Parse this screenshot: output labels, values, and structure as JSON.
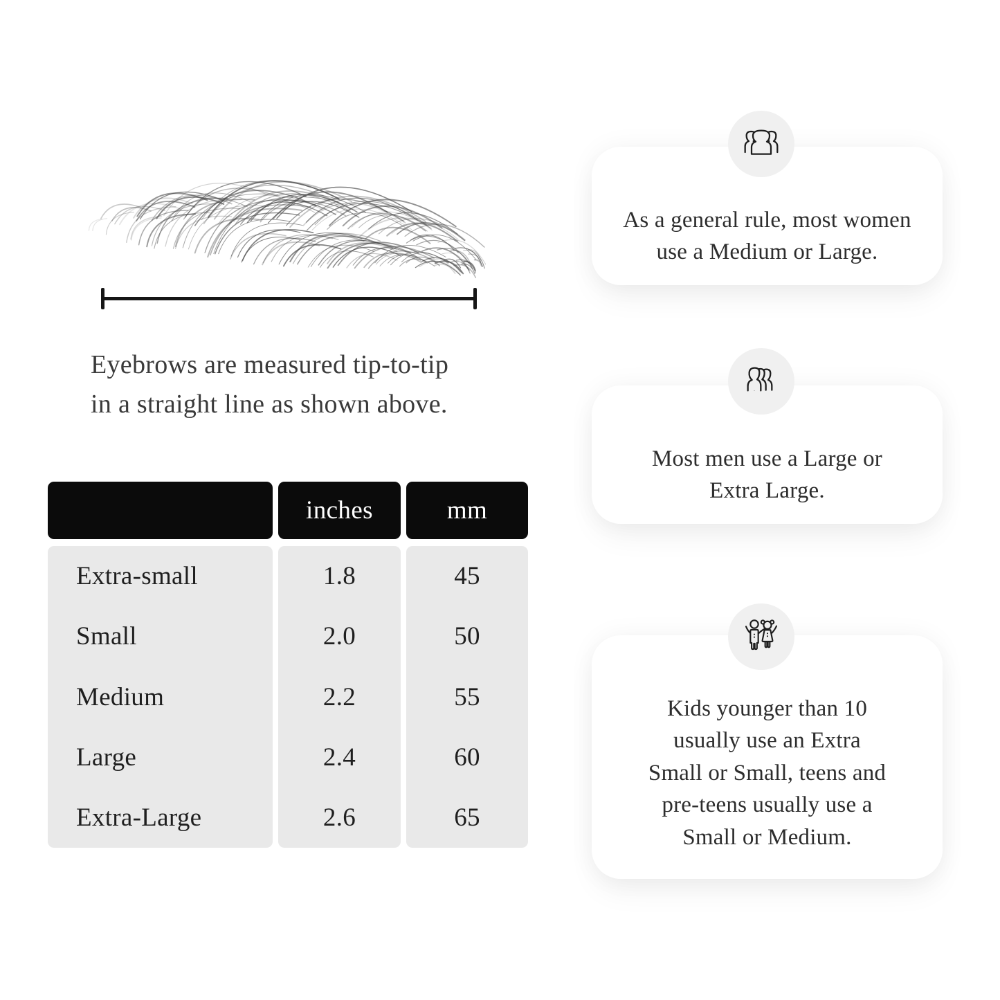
{
  "page": {
    "background": "#ffffff",
    "accent_black": "#0b0b0b",
    "table_body_gray": "#e9e9e9",
    "icon_circle_gray": "#f0f0f0"
  },
  "figure": {
    "illustration": "eyebrow-sketch",
    "ruler": "tip-to-tip-measure-line",
    "caption_line1": "Eyebrows are measured tip-to-tip",
    "caption_line2": "in a straight line as shown above."
  },
  "size_table": {
    "headers": {
      "label": "",
      "inches": "inches",
      "mm": "mm"
    },
    "rows": [
      {
        "label": "Extra-small",
        "inches": "1.8",
        "mm": "45"
      },
      {
        "label": "Small",
        "inches": "2.0",
        "mm": "50"
      },
      {
        "label": "Medium",
        "inches": "2.2",
        "mm": "55"
      },
      {
        "label": "Large",
        "inches": "2.4",
        "mm": "60"
      },
      {
        "label": "Extra-Large",
        "inches": "2.6",
        "mm": "65"
      }
    ]
  },
  "cards": [
    {
      "icon": "women-group-icon",
      "text": "As a general rule, most women use a Medium or Large.",
      "lines": [
        "As a general rule, most women",
        "use a Medium or Large."
      ]
    },
    {
      "icon": "men-group-icon",
      "text": "Most men use a Large or Extra Large.",
      "lines": [
        "Most men use a Large or",
        "Extra Large."
      ]
    },
    {
      "icon": "kids-icon",
      "text": "Kids younger than 10 usually use an Extra Small or Small, teens and pre-teens usually use a Small or Medium.",
      "lines": [
        "Kids younger than 10",
        "usually use an Extra",
        "Small or Small, teens and",
        "pre-teens usually use a",
        "Small or Medium."
      ]
    }
  ]
}
